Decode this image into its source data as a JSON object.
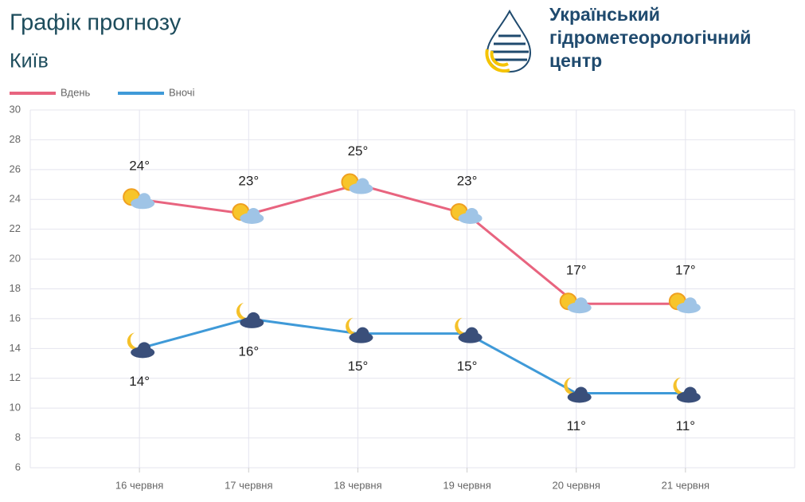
{
  "chart_data": {
    "type": "line",
    "title": "Графік прогнозу",
    "subtitle": "Київ",
    "categories": [
      "16 червня",
      "17 червня",
      "18 червня",
      "19 червня",
      "20 червня",
      "21 червня"
    ],
    "series": [
      {
        "name": "Вдень",
        "color": "#e8647f",
        "values": [
          24,
          23,
          25,
          23,
          17,
          17
        ],
        "value_labels": [
          "24°",
          "23°",
          "25°",
          "23°",
          "17°",
          "17°"
        ]
      },
      {
        "name": "Вночі",
        "color": "#3f9ad8",
        "values": [
          14,
          16,
          15,
          15,
          11,
          11
        ],
        "value_labels": [
          "14°",
          "16°",
          "15°",
          "15°",
          "11°",
          "11°"
        ]
      }
    ],
    "ylim": [
      6,
      30
    ],
    "yticks": [
      6,
      8,
      10,
      12,
      14,
      16,
      18,
      20,
      22,
      24,
      26,
      28,
      30
    ],
    "grid": true,
    "legend": "top-left"
  },
  "logo": {
    "lines": [
      "Український",
      "гідрометеорологічний",
      "центр"
    ]
  }
}
